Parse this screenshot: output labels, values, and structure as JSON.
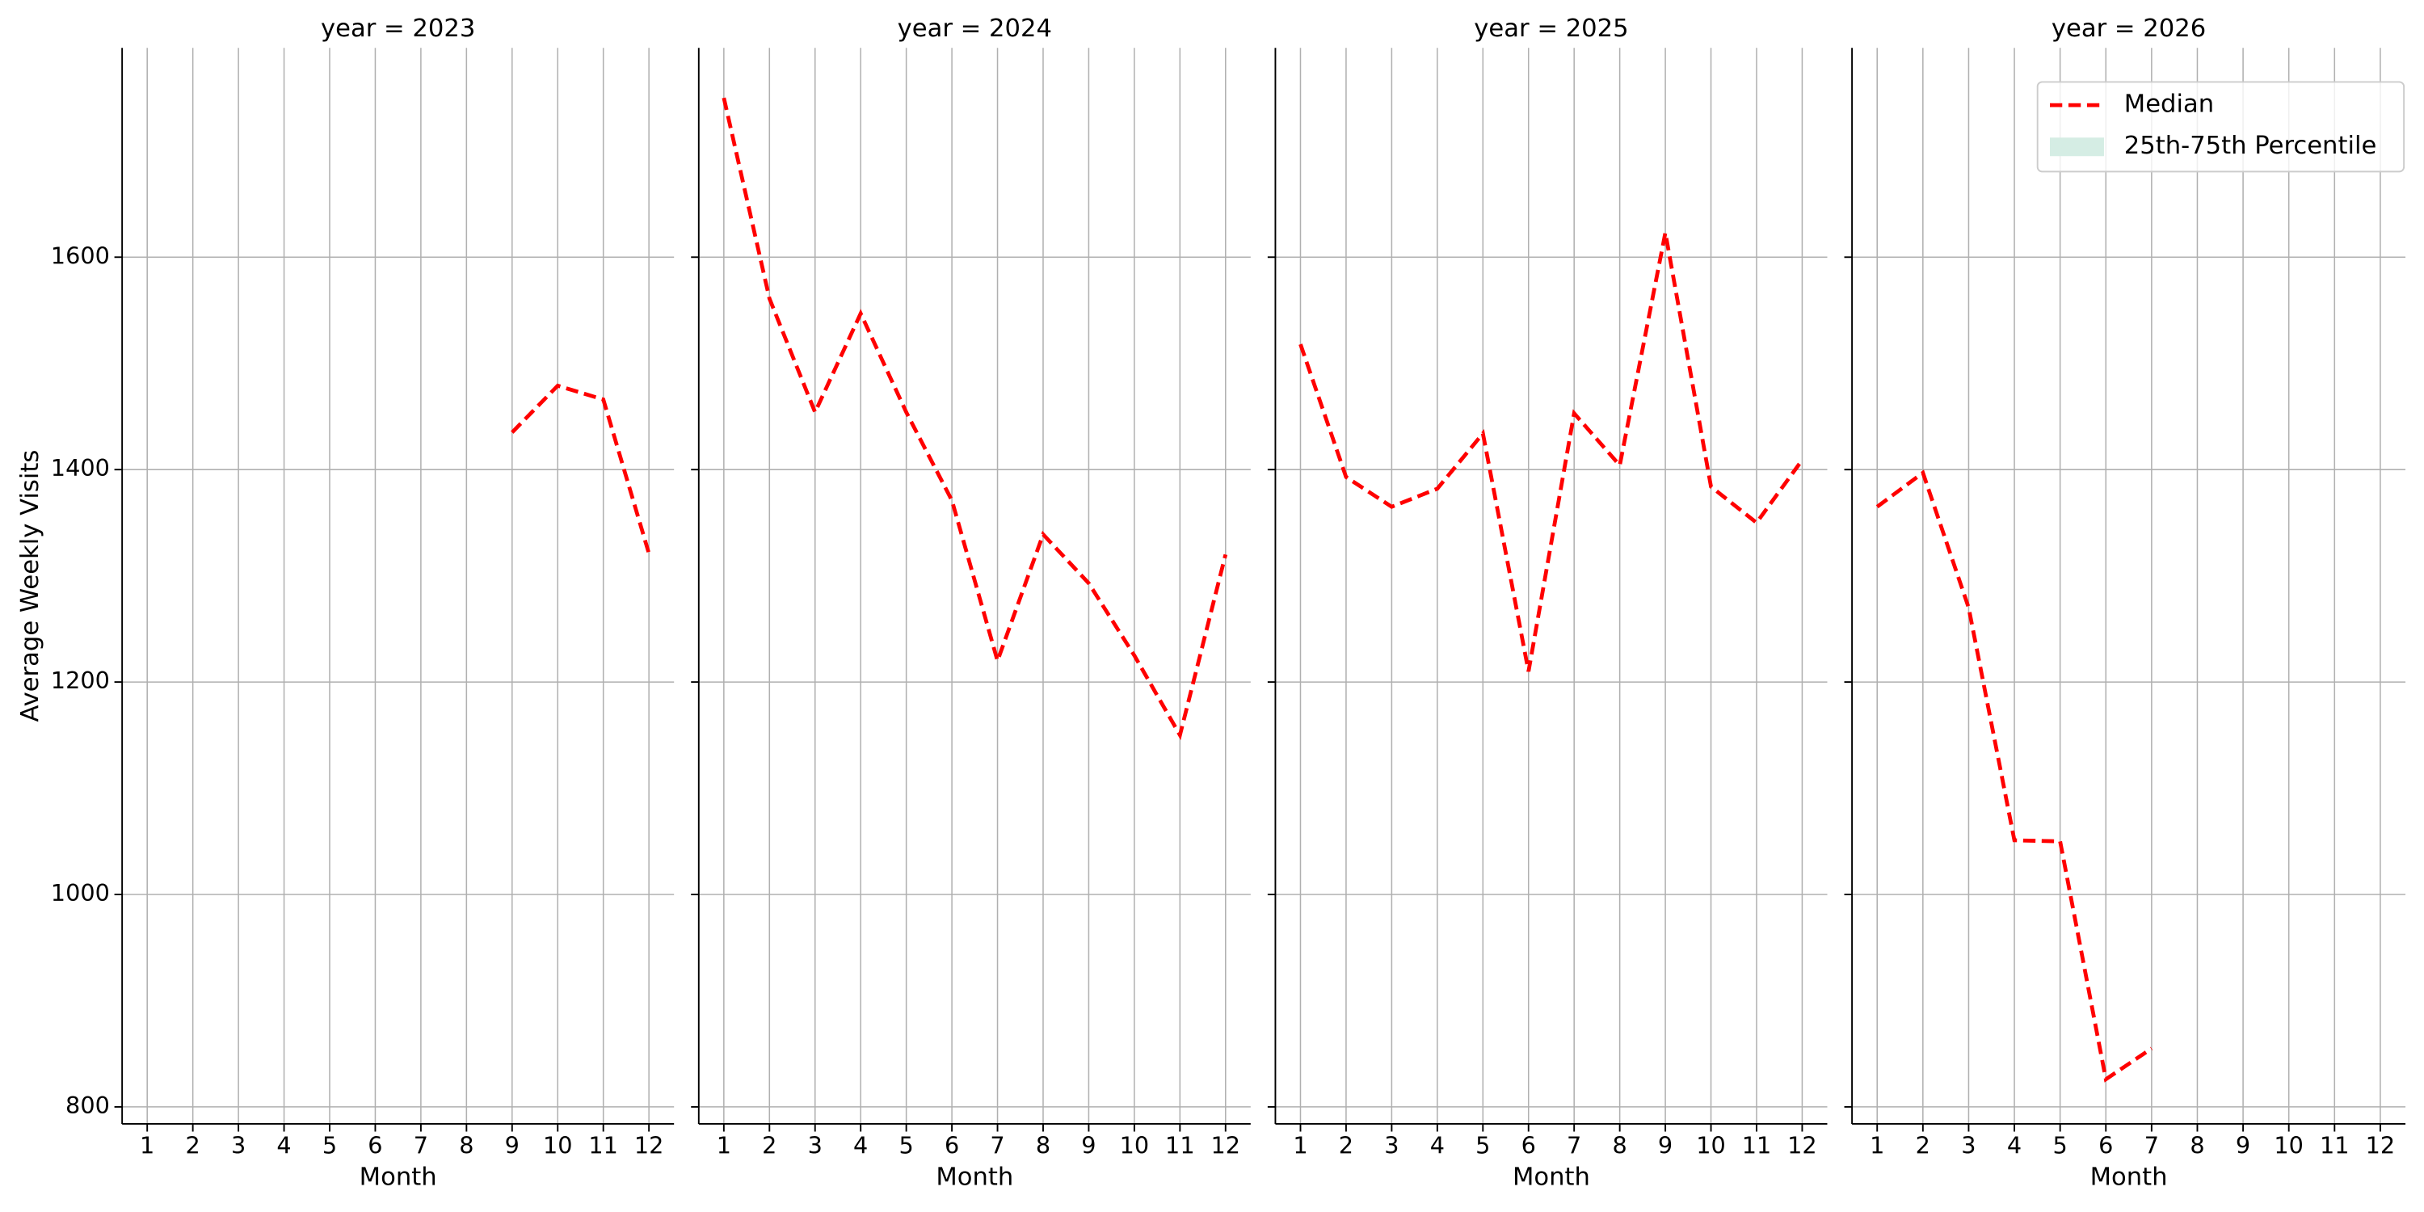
{
  "chart_data": [
    {
      "type": "line",
      "title": "year = 2023",
      "xlabel": "Month",
      "ylabel": "Average Weekly Visits",
      "x": [
        1,
        2,
        3,
        4,
        5,
        6,
        7,
        8,
        9,
        10,
        11,
        12
      ],
      "series": [
        {
          "name": "Median",
          "color": "#ff0000",
          "values": [
            null,
            null,
            null,
            null,
            null,
            null,
            null,
            null,
            1435,
            1479,
            1466,
            1321
          ]
        }
      ],
      "xlim": [
        0.45,
        12.55
      ],
      "xticks": [
        1,
        2,
        3,
        4,
        5,
        6,
        7,
        8,
        9,
        10,
        11,
        12
      ],
      "ylim": [
        784,
        1797
      ],
      "yticks": [
        800,
        1000,
        1200,
        1400,
        1600
      ],
      "grid": true
    },
    {
      "type": "line",
      "title": "year = 2024",
      "xlabel": "Month",
      "x": [
        1,
        2,
        3,
        4,
        5,
        6,
        7,
        8,
        9,
        10,
        11,
        12
      ],
      "series": [
        {
          "name": "Median",
          "color": "#ff0000",
          "values": [
            1750,
            1561,
            1454,
            1547,
            1454,
            1371,
            1220,
            1339,
            1293,
            1225,
            1150,
            1320
          ]
        }
      ],
      "xlim": [
        0.45,
        12.55
      ],
      "xticks": [
        1,
        2,
        3,
        4,
        5,
        6,
        7,
        8,
        9,
        10,
        11,
        12
      ],
      "ylim": [
        784,
        1797
      ],
      "yticks": [
        800,
        1000,
        1200,
        1400,
        1600
      ],
      "grid": true
    },
    {
      "type": "line",
      "title": "year = 2025",
      "xlabel": "Month",
      "x": [
        1,
        2,
        3,
        4,
        5,
        6,
        7,
        8,
        9,
        10,
        11,
        12
      ],
      "series": [
        {
          "name": "Median",
          "color": "#ff0000",
          "values": [
            1518,
            1393,
            1365,
            1382,
            1434,
            1210,
            1453,
            1404,
            1623,
            1384,
            1350,
            1409
          ]
        }
      ],
      "xlim": [
        0.45,
        12.55
      ],
      "xticks": [
        1,
        2,
        3,
        4,
        5,
        6,
        7,
        8,
        9,
        10,
        11,
        12
      ],
      "ylim": [
        784,
        1797
      ],
      "yticks": [
        800,
        1000,
        1200,
        1400,
        1600
      ],
      "grid": true
    },
    {
      "type": "line",
      "title": "year = 2026",
      "xlabel": "Month",
      "x": [
        1,
        2,
        3,
        4,
        5,
        6,
        7,
        8,
        9,
        10,
        11,
        12
      ],
      "series": [
        {
          "name": "Median",
          "color": "#ff0000",
          "values": [
            1365,
            1397,
            1270,
            1051,
            1050,
            826,
            855,
            null,
            null,
            null,
            null,
            null
          ]
        },
        {
          "name": "25th-75th Percentile",
          "color": "#d5ede4",
          "style": "band"
        }
      ],
      "xlim": [
        0.45,
        12.55
      ],
      "xticks": [
        1,
        2,
        3,
        4,
        5,
        6,
        7,
        8,
        9,
        10,
        11,
        12
      ],
      "ylim": [
        784,
        1797
      ],
      "yticks": [
        800,
        1000,
        1200,
        1400,
        1600
      ],
      "grid": true,
      "legend": "upper right"
    }
  ]
}
